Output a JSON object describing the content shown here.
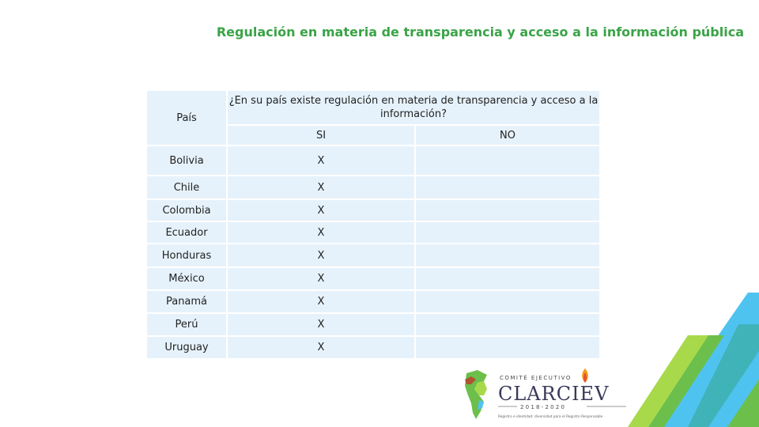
{
  "title": "Regulación en materia de transparencia y acceso a la información pública",
  "table": {
    "country_header": "País",
    "question": "¿En su país existe regulación en materia de transparencia y acceso a la información?",
    "yes_label": "SI",
    "no_label": "NO",
    "rows": [
      {
        "country": "Bolivia",
        "si": "X",
        "no": ""
      },
      {
        "country": "Chile",
        "si": "X",
        "no": ""
      },
      {
        "country": "Colombia",
        "si": "X",
        "no": ""
      },
      {
        "country": "Ecuador",
        "si": "X",
        "no": ""
      },
      {
        "country": "Honduras",
        "si": "X",
        "no": ""
      },
      {
        "country": "México",
        "si": "X",
        "no": ""
      },
      {
        "country": "Panamá",
        "si": "X",
        "no": ""
      },
      {
        "country": "Perú",
        "si": "X",
        "no": ""
      },
      {
        "country": "Uruguay",
        "si": "X",
        "no": ""
      }
    ]
  },
  "logo": {
    "kicker": "COMITÉ EJECUTIVO",
    "name": "CLARCIEV",
    "years": "2 0 1 8 - 2 0 2 0",
    "tagline": "Registro e identidad: diversidad para el Registro Responsable"
  },
  "colors": {
    "title_green": "#3aa347",
    "header_blue": "#29a8e6",
    "cell_light": "#e8f3fc",
    "deco_blue": "#4fc3f0",
    "deco_green": "#6cbf4a",
    "deco_lime": "#a8d94a",
    "deco_teal": "#3fb3b8"
  }
}
